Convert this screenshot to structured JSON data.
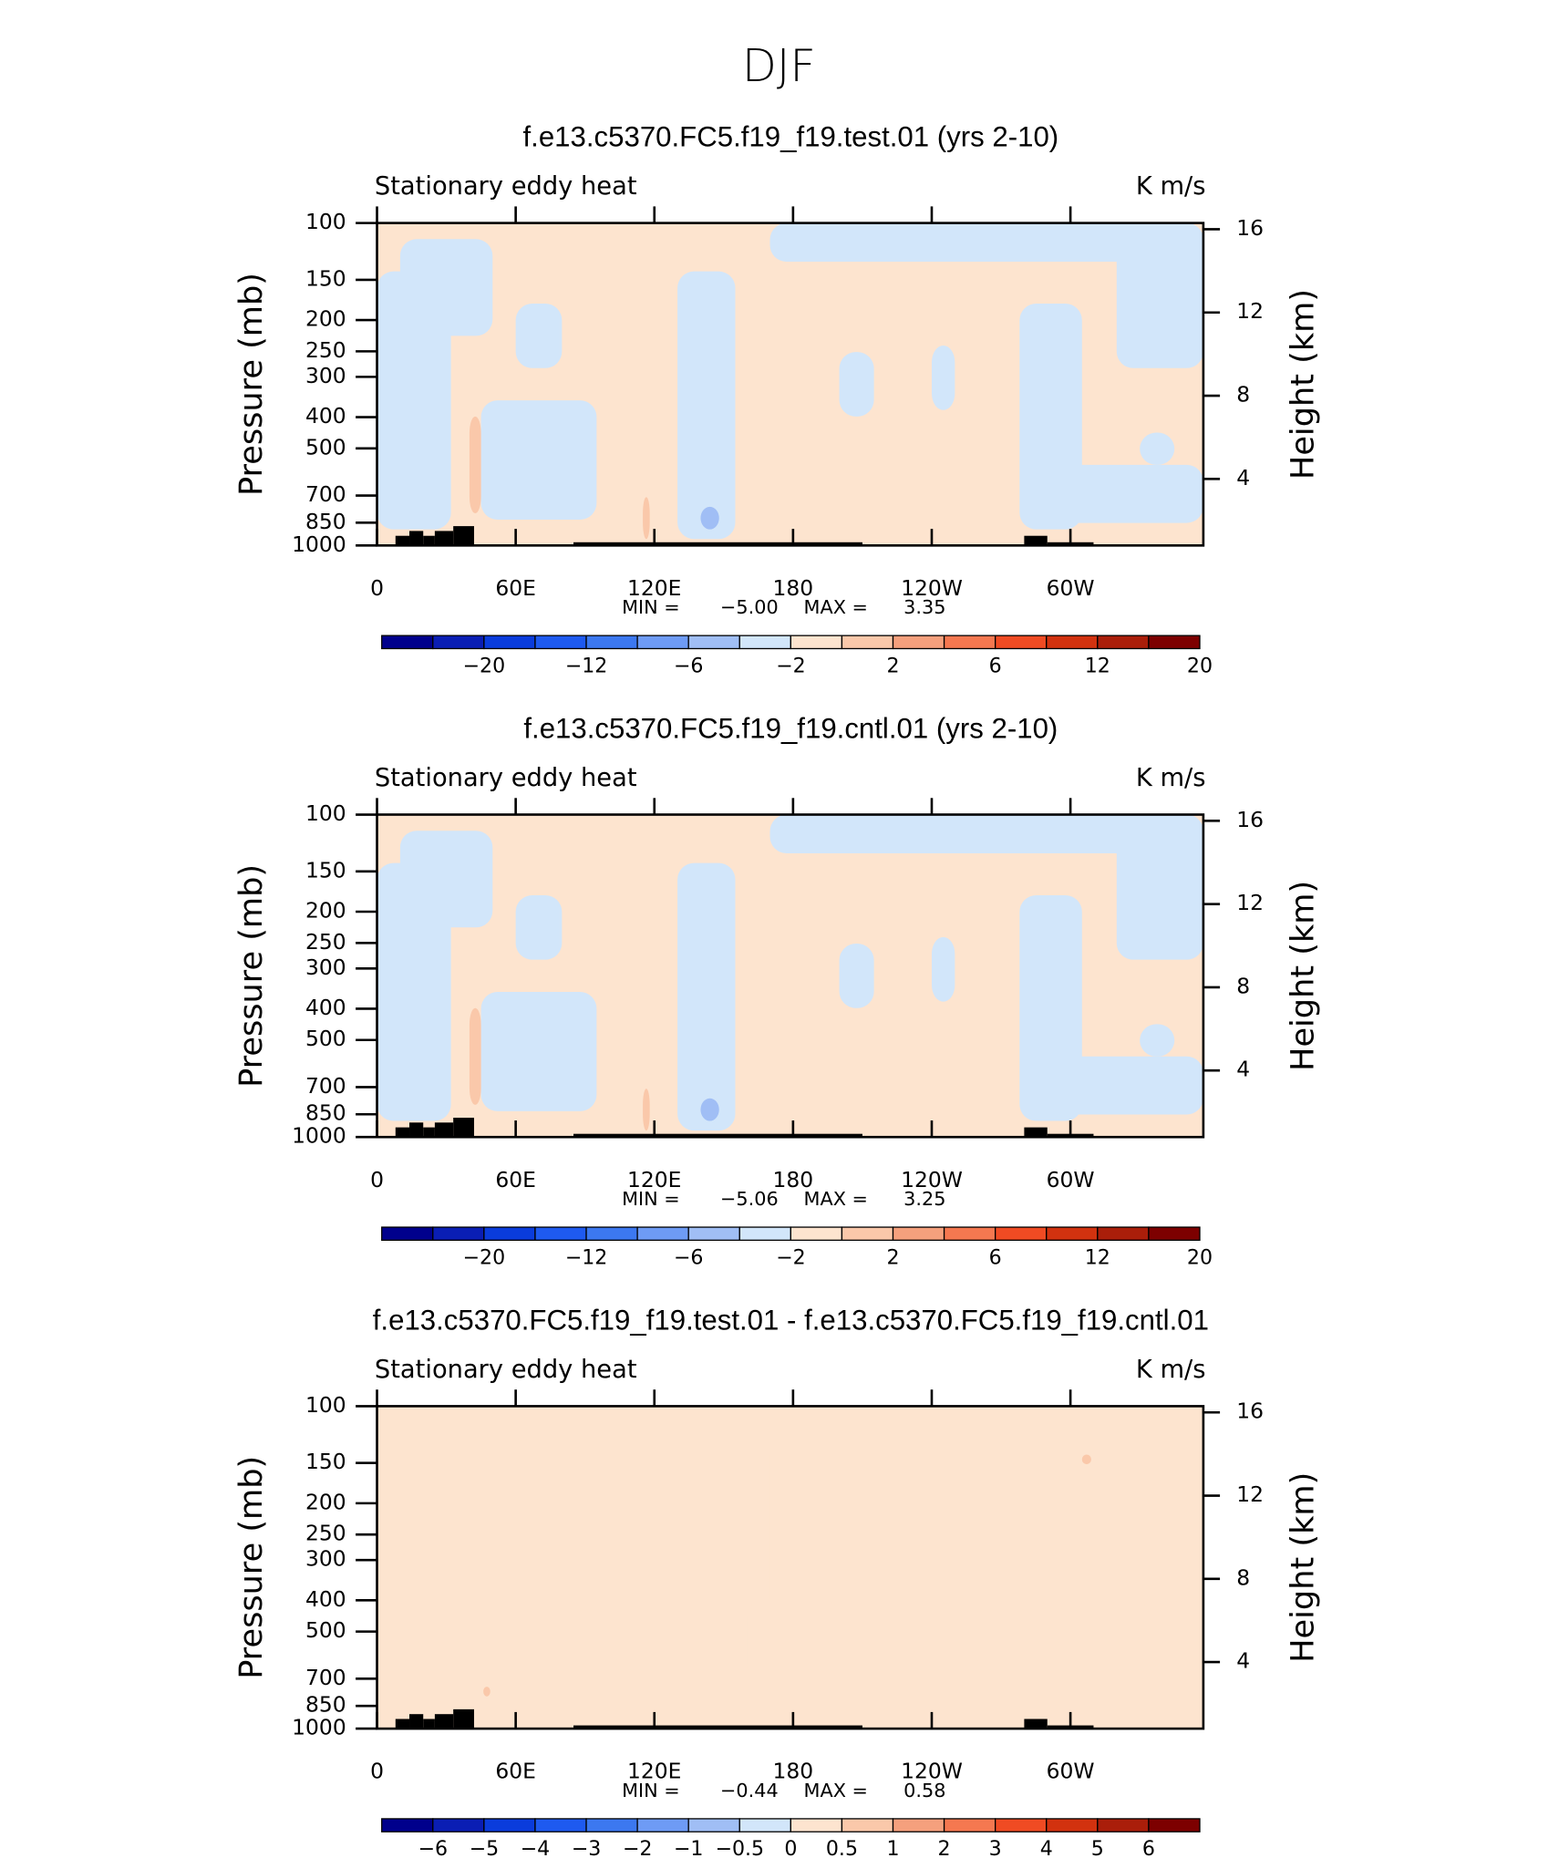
{
  "title": "DJF",
  "chart_data": [
    {
      "type": "contour",
      "title": "f.e13.c5370.FC5.f19_f19.test.01 (yrs 2-10)",
      "left_label": "Stationary eddy heat",
      "right_label": "K m/s",
      "y_label": "Pressure (mb)",
      "y2_label": "Height (km)",
      "xlim": [
        0,
        357.5
      ],
      "xticks": [
        0,
        {
          "value": 60,
          "label": "60E"
        },
        {
          "value": 120,
          "label": "120E"
        },
        180,
        {
          "value": 240,
          "label": "120W"
        },
        {
          "value": 300,
          "label": "60W"
        }
      ],
      "ylim": [
        1000,
        100
      ],
      "yticks": [
        100,
        150,
        200,
        250,
        300,
        400,
        500,
        700,
        850,
        1000
      ],
      "log_y": true,
      "y2lim": [
        0.8,
        16.3
      ],
      "y2ticks": [
        4,
        8,
        12,
        16
      ],
      "stats": [
        {
          "name": "MIN =",
          "value": -5,
          "label": "−5.00"
        },
        {
          "name": "MAX =",
          "value": 3.35
        }
      ],
      "colorbar": {
        "colors": [
          "#00008c",
          "#0a1eb4",
          "#0a3cdc",
          "#1e5af0",
          "#3c78f0",
          "#6e9bf5",
          "#a0bef5",
          "#d2e6fa",
          "#fde4cf",
          "#fac8aa",
          "#f5a07d",
          "#f57850",
          "#f04b23",
          "#d2320f",
          "#aa1e0a",
          "#7d0000"
        ],
        "labels": [
          null,
          {
            "value": -20,
            "label": "−20"
          },
          null,
          {
            "value": -12,
            "label": "−12"
          },
          null,
          {
            "value": -6,
            "label": "−6"
          },
          null,
          {
            "value": -2,
            "label": "−2"
          },
          null,
          2,
          null,
          6,
          null,
          12,
          null,
          20
        ]
      }
    },
    {
      "type": "contour",
      "title": "f.e13.c5370.FC5.f19_f19.cntl.01 (yrs 2-10)",
      "left_label": "Stationary eddy heat",
      "right_label": "K m/s",
      "y_label": "Pressure (mb)",
      "y2_label": "Height (km)",
      "xlim": [
        0,
        357.5
      ],
      "xticks": [
        0,
        {
          "value": 60,
          "label": "60E"
        },
        {
          "value": 120,
          "label": "120E"
        },
        180,
        {
          "value": 240,
          "label": "120W"
        },
        {
          "value": 300,
          "label": "60W"
        }
      ],
      "ylim": [
        1000,
        100
      ],
      "yticks": [
        100,
        150,
        200,
        250,
        300,
        400,
        500,
        700,
        850,
        1000
      ],
      "log_y": true,
      "y2lim": [
        0.8,
        16.3
      ],
      "y2ticks": [
        4,
        8,
        12,
        16
      ],
      "stats": [
        {
          "name": "MIN =",
          "value": -5.06,
          "label": "−5.06"
        },
        {
          "name": "MAX =",
          "value": 3.25
        }
      ],
      "colorbar": {
        "colors": [
          "#00008c",
          "#0a1eb4",
          "#0a3cdc",
          "#1e5af0",
          "#3c78f0",
          "#6e9bf5",
          "#a0bef5",
          "#d2e6fa",
          "#fde4cf",
          "#fac8aa",
          "#f5a07d",
          "#f57850",
          "#f04b23",
          "#d2320f",
          "#aa1e0a",
          "#7d0000"
        ],
        "labels": [
          null,
          {
            "value": -20,
            "label": "−20"
          },
          null,
          {
            "value": -12,
            "label": "−12"
          },
          null,
          {
            "value": -6,
            "label": "−6"
          },
          null,
          {
            "value": -2,
            "label": "−2"
          },
          null,
          2,
          null,
          6,
          null,
          12,
          null,
          20
        ]
      }
    },
    {
      "type": "contour",
      "title": "f.e13.c5370.FC5.f19_f19.test.01 - f.e13.c5370.FC5.f19_f19.cntl.01",
      "left_label": "Stationary eddy heat",
      "right_label": "K m/s",
      "y_label": "Pressure (mb)",
      "y2_label": "Height (km)",
      "xlim": [
        0,
        357.5
      ],
      "xticks": [
        0,
        {
          "value": 60,
          "label": "60E"
        },
        {
          "value": 120,
          "label": "120E"
        },
        180,
        {
          "value": 240,
          "label": "120W"
        },
        {
          "value": 300,
          "label": "60W"
        }
      ],
      "ylim": [
        1000,
        100
      ],
      "yticks": [
        100,
        150,
        200,
        250,
        300,
        400,
        500,
        700,
        850,
        1000
      ],
      "log_y": true,
      "y2lim": [
        0.8,
        16.3
      ],
      "y2ticks": [
        4,
        8,
        12,
        16
      ],
      "stats": [
        {
          "name": "MIN =",
          "value": -0.44,
          "label": "−0.44"
        },
        {
          "name": "MAX =",
          "value": 0.58
        }
      ],
      "colorbar": {
        "colors": [
          "#00008c",
          "#0a1eb4",
          "#0a3cdc",
          "#1e5af0",
          "#3c78f0",
          "#6e9bf5",
          "#a0bef5",
          "#d2e6fa",
          "#fde4cf",
          "#fac8aa",
          "#f5a07d",
          "#f57850",
          "#f04b23",
          "#d2320f",
          "#aa1e0a",
          "#7d0000"
        ],
        "labels": [
          {
            "value": -6,
            "label": "−6"
          },
          {
            "value": -5,
            "label": "−5"
          },
          {
            "value": -4,
            "label": "−4"
          },
          {
            "value": -3,
            "label": "−3"
          },
          {
            "value": -2,
            "label": "−2"
          },
          {
            "value": -1,
            "label": "−1"
          },
          {
            "value": -0.5,
            "label": "−0.5"
          },
          0,
          0.5,
          1,
          2,
          3,
          4,
          5,
          6
        ]
      }
    }
  ]
}
